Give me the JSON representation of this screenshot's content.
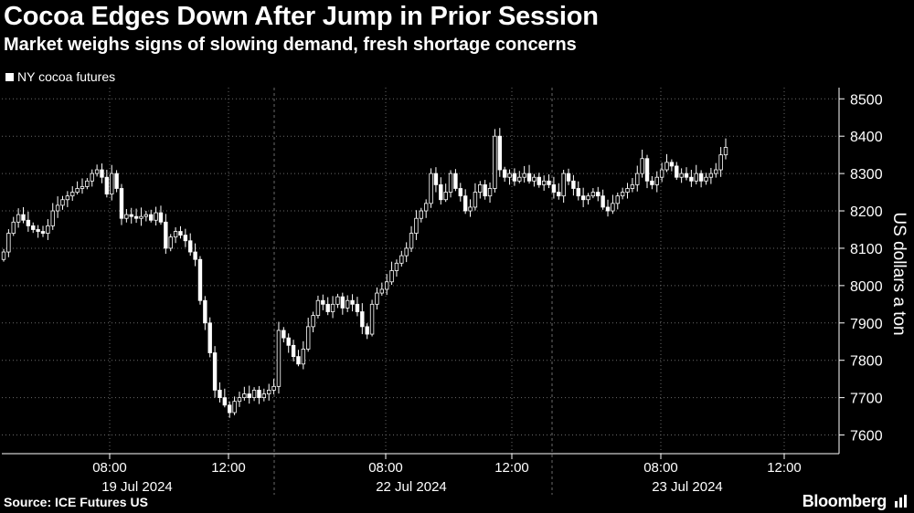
{
  "header": {
    "title": "Cocoa Edges Down After Jump in Prior Session",
    "subtitle": "Market weighs signs of slowing demand, fresh shortage concerns"
  },
  "footer": {
    "source": "Source: ICE Futures US",
    "brand": "Bloomberg"
  },
  "chart_data": {
    "type": "candlestick",
    "title": "Cocoa Edges Down After Jump in Prior Session",
    "subtitle": "Market weighs signs of slowing demand, fresh shortage concerns",
    "ylabel": "US dollars a ton",
    "ylim": [
      7550,
      8530
    ],
    "yticks": [
      7600,
      7700,
      7800,
      7900,
      8000,
      8100,
      8200,
      8300,
      8400,
      8500
    ],
    "y_axis_side": "right",
    "grid": "dotted",
    "legend": {
      "position": "top-left",
      "entries": [
        "NY cocoa futures"
      ]
    },
    "colors": {
      "background": "#000000",
      "candles": "#ffffff",
      "grid": "#6a6a6a"
    },
    "sessions": [
      {
        "date": "19 Jul 2024",
        "xticks": [
          "08:00",
          "12:00"
        ]
      },
      {
        "date": "22 Jul 2024",
        "xticks": [
          "08:00",
          "12:00"
        ]
      },
      {
        "date": "23 Jul 2024",
        "xticks": [
          "08:00",
          "12:00"
        ]
      }
    ],
    "series": [
      {
        "name": "NY cocoa futures",
        "close": [
          8090,
          8140,
          8170,
          8190,
          8175,
          8160,
          8150,
          8145,
          8140,
          8160,
          8200,
          8215,
          8230,
          8240,
          8250,
          8260,
          8265,
          8280,
          8300,
          8310,
          8290,
          8245,
          8300,
          8260,
          8180,
          8190,
          8185,
          8180,
          8185,
          8190,
          8175,
          8195,
          8170,
          8100,
          8130,
          8145,
          8135,
          8120,
          8090,
          8070,
          7960,
          7900,
          7820,
          7720,
          7700,
          7680,
          7660,
          7690,
          7700,
          7710,
          7700,
          7720,
          7700,
          7710,
          7720,
          7730,
          7880,
          7860,
          7840,
          7810,
          7790,
          7830,
          7890,
          7920,
          7960,
          7950,
          7930,
          7950,
          7970,
          7940,
          7960,
          7950,
          7930,
          7890,
          7870,
          7950,
          7980,
          7990,
          8010,
          8040,
          8060,
          8080,
          8100,
          8140,
          8180,
          8200,
          8220,
          8300,
          8270,
          8230,
          8250,
          8300,
          8260,
          8240,
          8200,
          8210,
          8250,
          8270,
          8240,
          8260,
          8400,
          8310,
          8290,
          8300,
          8280,
          8290,
          8300,
          8280,
          8290,
          8270,
          8280,
          8270,
          8250,
          8240,
          8300,
          8280,
          8260,
          8240,
          8230,
          8240,
          8250,
          8240,
          8210,
          8200,
          8220,
          8240,
          8250,
          8260,
          8270,
          8300,
          8340,
          8280,
          8270,
          8290,
          8310,
          8330,
          8320,
          8290,
          8300,
          8290,
          8280,
          8300,
          8280,
          8290,
          8300,
          8310,
          8350,
          8370
        ]
      }
    ]
  }
}
